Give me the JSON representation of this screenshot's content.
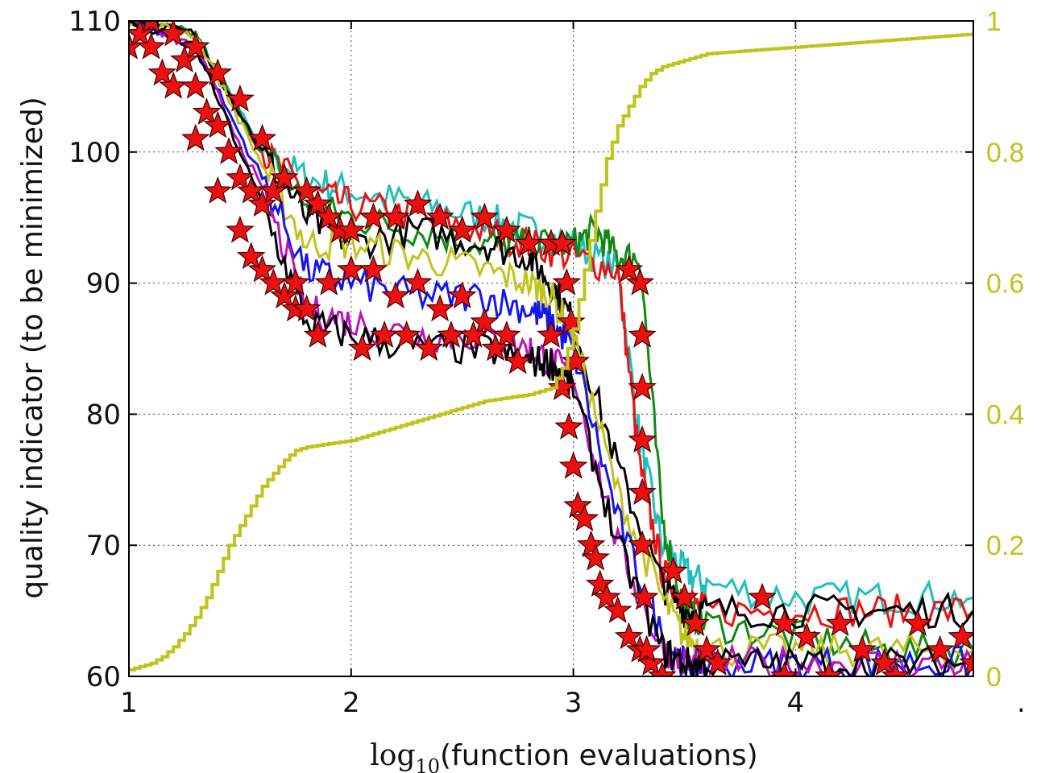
{
  "chart_data": {
    "type": "line",
    "xlabel": "log10(function evaluations)",
    "xlabel_parts": {
      "log": "log",
      "sub": "10",
      "rest": "(function evaluations)"
    },
    "ylabel": "quality indicator (to be minimized)",
    "y2label": "",
    "xlim": [
      1,
      4.8
    ],
    "ylim": [
      60,
      110
    ],
    "y2lim": [
      0,
      1
    ],
    "xticks": [
      "1",
      "2",
      "3",
      "4"
    ],
    "xtick_values": [
      1,
      2,
      3,
      4
    ],
    "yticks": [
      "60",
      "70",
      "80",
      "90",
      "100",
      "110"
    ],
    "ytick_values": [
      60,
      70,
      80,
      90,
      100,
      110
    ],
    "y2ticks": [
      "0",
      "0.2",
      "0.4",
      "0.6",
      "0.8",
      "1"
    ],
    "y2tick_values": [
      0,
      0.2,
      0.4,
      0.6,
      0.8,
      1
    ],
    "trailing_mark": ".",
    "grid": true,
    "legend": "none",
    "colors": {
      "cyan": "#1fbfbf",
      "red": "#ee1111",
      "green": "#118811",
      "black": "#000000",
      "olive": "#c2c21c",
      "blue": "#1515ee",
      "magenta": "#bb11bb",
      "star_fill": "#ee0f0f",
      "star_edge": "#3a0000",
      "right_axis": "#c2c21c"
    },
    "series": [
      {
        "color": "cyan",
        "axis": "left",
        "x": [
          1,
          1.3,
          1.6,
          1.8,
          2.0,
          2.3,
          2.6,
          2.8,
          3.0,
          3.2,
          3.3,
          3.4,
          3.5,
          3.6,
          4.0,
          4.4,
          4.8
        ],
        "y": [
          110,
          109,
          100,
          98,
          97,
          96,
          95,
          94,
          93,
          91,
          78,
          70,
          68,
          67,
          66,
          66,
          66
        ]
      },
      {
        "color": "red",
        "axis": "left",
        "x": [
          1,
          1.3,
          1.6,
          1.8,
          2.0,
          2.3,
          2.6,
          2.8,
          3.0,
          3.2,
          3.3,
          3.4,
          3.5,
          3.6,
          4.0,
          4.4,
          4.8
        ],
        "y": [
          110,
          109,
          100,
          97,
          96,
          95,
          94,
          93,
          92,
          91,
          76,
          68,
          66,
          65,
          65,
          65,
          65
        ]
      },
      {
        "color": "green",
        "axis": "left",
        "x": [
          1,
          1.3,
          1.6,
          1.8,
          2.0,
          2.3,
          2.6,
          2.8,
          3.0,
          3.1,
          3.2,
          3.3,
          3.4,
          3.5,
          3.6,
          4.0,
          4.4,
          4.8
        ],
        "y": [
          110,
          109,
          100,
          96,
          95,
          94,
          93,
          93,
          93,
          94,
          92,
          92,
          72,
          65,
          64,
          63,
          62,
          62
        ]
      },
      {
        "color": "black",
        "axis": "left",
        "x": [
          1,
          1.3,
          1.6,
          1.8,
          2.0,
          2.3,
          2.6,
          2.8,
          2.9,
          3.0,
          3.2,
          3.4,
          3.5,
          3.6,
          4.0,
          4.4,
          4.8
        ],
        "y": [
          110,
          109,
          100,
          95,
          93,
          94,
          93,
          92,
          90,
          87,
          76,
          67,
          65,
          65,
          65,
          65,
          65
        ]
      },
      {
        "color": "olive",
        "axis": "left",
        "x": [
          1,
          1.3,
          1.6,
          1.8,
          2.0,
          2.3,
          2.6,
          2.8,
          2.9,
          3.0,
          3.2,
          3.4,
          3.5,
          3.6,
          4.0,
          4.4,
          4.8
        ],
        "y": [
          110,
          109,
          99,
          93,
          93,
          92,
          91,
          90,
          89,
          86,
          74,
          66,
          63,
          62,
          62,
          62,
          62
        ]
      },
      {
        "color": "blue",
        "axis": "left",
        "x": [
          1,
          1.3,
          1.6,
          1.8,
          2.0,
          2.3,
          2.6,
          2.8,
          2.9,
          3.0,
          3.2,
          3.4,
          3.5,
          3.6,
          4.0,
          4.4,
          4.8
        ],
        "y": [
          110,
          108,
          98,
          91,
          90,
          89,
          89,
          88,
          87,
          85,
          72,
          63,
          61,
          61,
          61,
          61,
          61
        ]
      },
      {
        "color": "magenta",
        "axis": "left",
        "x": [
          1,
          1.3,
          1.6,
          1.8,
          2.0,
          2.3,
          2.6,
          2.8,
          2.9,
          3.0,
          3.2,
          3.4,
          3.5,
          3.6,
          4.0,
          4.4,
          4.8
        ],
        "y": [
          110,
          108,
          97,
          88,
          87,
          86,
          86,
          85,
          84,
          83,
          70,
          62,
          61,
          61,
          61,
          61,
          61
        ]
      },
      {
        "color": "black",
        "axis": "left",
        "x": [
          1,
          1.3,
          1.6,
          1.8,
          2.0,
          2.3,
          2.6,
          2.8,
          2.9,
          3.0,
          3.2,
          3.4,
          3.5,
          3.6,
          4.0,
          4.4,
          4.8
        ],
        "y": [
          110,
          108,
          96,
          87,
          86,
          85,
          85,
          84,
          84,
          82,
          70,
          62,
          61,
          61,
          61,
          61,
          61
        ]
      }
    ],
    "star_markers": {
      "color": "star_fill",
      "points": [
        [
          1.0,
          108
        ],
        [
          1.05,
          109
        ],
        [
          1.1,
          108
        ],
        [
          1.15,
          106
        ],
        [
          1.2,
          105
        ],
        [
          1.25,
          107
        ],
        [
          1.3,
          105
        ],
        [
          1.35,
          103
        ],
        [
          1.4,
          102
        ],
        [
          1.45,
          100
        ],
        [
          1.5,
          98
        ],
        [
          1.55,
          97
        ],
        [
          1.6,
          96
        ],
        [
          1.65,
          97
        ],
        [
          1.1,
          110
        ],
        [
          1.2,
          109
        ],
        [
          1.3,
          108
        ],
        [
          1.4,
          106
        ],
        [
          1.5,
          104
        ],
        [
          1.6,
          101
        ],
        [
          1.7,
          98
        ],
        [
          1.8,
          97
        ],
        [
          1.3,
          101
        ],
        [
          1.4,
          97
        ],
        [
          1.5,
          94
        ],
        [
          1.6,
          91
        ],
        [
          1.7,
          89
        ],
        [
          1.75,
          88
        ],
        [
          1.85,
          86
        ],
        [
          1.55,
          92
        ],
        [
          1.65,
          90
        ],
        [
          1.75,
          90
        ],
        [
          1.8,
          88
        ],
        [
          1.9,
          90
        ],
        [
          1.95,
          94
        ],
        [
          1.85,
          96
        ],
        [
          1.9,
          95
        ],
        [
          2.0,
          94
        ],
        [
          2.1,
          95
        ],
        [
          2.2,
          95
        ],
        [
          2.3,
          96
        ],
        [
          2.4,
          95
        ],
        [
          2.5,
          94
        ],
        [
          2.6,
          95
        ],
        [
          2.7,
          94
        ],
        [
          2.8,
          93
        ],
        [
          2.9,
          93
        ],
        [
          2.0,
          91
        ],
        [
          2.1,
          91
        ],
        [
          2.2,
          89
        ],
        [
          2.3,
          90
        ],
        [
          2.4,
          88
        ],
        [
          2.5,
          89
        ],
        [
          2.6,
          87
        ],
        [
          2.7,
          86
        ],
        [
          2.05,
          85
        ],
        [
          2.15,
          86
        ],
        [
          2.25,
          86
        ],
        [
          2.35,
          85
        ],
        [
          2.45,
          86
        ],
        [
          2.55,
          86
        ],
        [
          2.65,
          85
        ],
        [
          2.75,
          84
        ],
        [
          2.9,
          86
        ],
        [
          2.95,
          82
        ],
        [
          2.98,
          79
        ],
        [
          3.0,
          76
        ],
        [
          3.02,
          73
        ],
        [
          3.05,
          72
        ],
        [
          3.08,
          70
        ],
        [
          3.1,
          69
        ],
        [
          3.12,
          67
        ],
        [
          3.15,
          66
        ],
        [
          3.2,
          65
        ],
        [
          3.25,
          63
        ],
        [
          3.3,
          62
        ],
        [
          3.35,
          61
        ],
        [
          3.4,
          60
        ],
        [
          2.95,
          93
        ],
        [
          2.97,
          90
        ],
        [
          2.99,
          87
        ],
        [
          3.01,
          84
        ],
        [
          3.3,
          90
        ],
        [
          3.31,
          86
        ],
        [
          3.31,
          82
        ],
        [
          3.31,
          78
        ],
        [
          3.31,
          74
        ],
        [
          3.31,
          70
        ],
        [
          3.32,
          66
        ],
        [
          3.33,
          62
        ],
        [
          3.25,
          91
        ],
        [
          3.45,
          68
        ],
        [
          3.5,
          66
        ],
        [
          3.55,
          64
        ],
        [
          3.6,
          62
        ],
        [
          3.65,
          61
        ],
        [
          3.85,
          66
        ],
        [
          3.95,
          64
        ],
        [
          4.05,
          63
        ],
        [
          4.2,
          64
        ],
        [
          4.3,
          62
        ],
        [
          4.4,
          61
        ],
        [
          4.55,
          64
        ],
        [
          4.65,
          62
        ],
        [
          4.75,
          63
        ],
        [
          4.8,
          61
        ],
        [
          3.95,
          60
        ],
        [
          4.15,
          60
        ],
        [
          4.45,
          60
        ]
      ]
    },
    "ecdf_line": {
      "color": "right_axis",
      "axis": "right",
      "x": [
        1.0,
        1.05,
        1.1,
        1.15,
        1.2,
        1.25,
        1.3,
        1.35,
        1.4,
        1.45,
        1.5,
        1.55,
        1.6,
        1.65,
        1.7,
        1.75,
        1.8,
        2.0,
        2.2,
        2.4,
        2.6,
        2.8,
        2.9,
        2.95,
        3.0,
        3.05,
        3.1,
        3.15,
        3.2,
        3.25,
        3.3,
        3.35,
        3.4,
        3.5,
        3.6,
        3.8,
        4.0,
        4.2,
        4.4,
        4.6,
        4.8
      ],
      "y": [
        0.01,
        0.015,
        0.02,
        0.03,
        0.045,
        0.065,
        0.09,
        0.12,
        0.16,
        0.2,
        0.23,
        0.26,
        0.29,
        0.31,
        0.33,
        0.345,
        0.35,
        0.36,
        0.38,
        0.4,
        0.42,
        0.43,
        0.44,
        0.47,
        0.53,
        0.62,
        0.71,
        0.79,
        0.84,
        0.87,
        0.9,
        0.92,
        0.93,
        0.94,
        0.95,
        0.955,
        0.96,
        0.965,
        0.97,
        0.975,
        0.98
      ]
    }
  }
}
